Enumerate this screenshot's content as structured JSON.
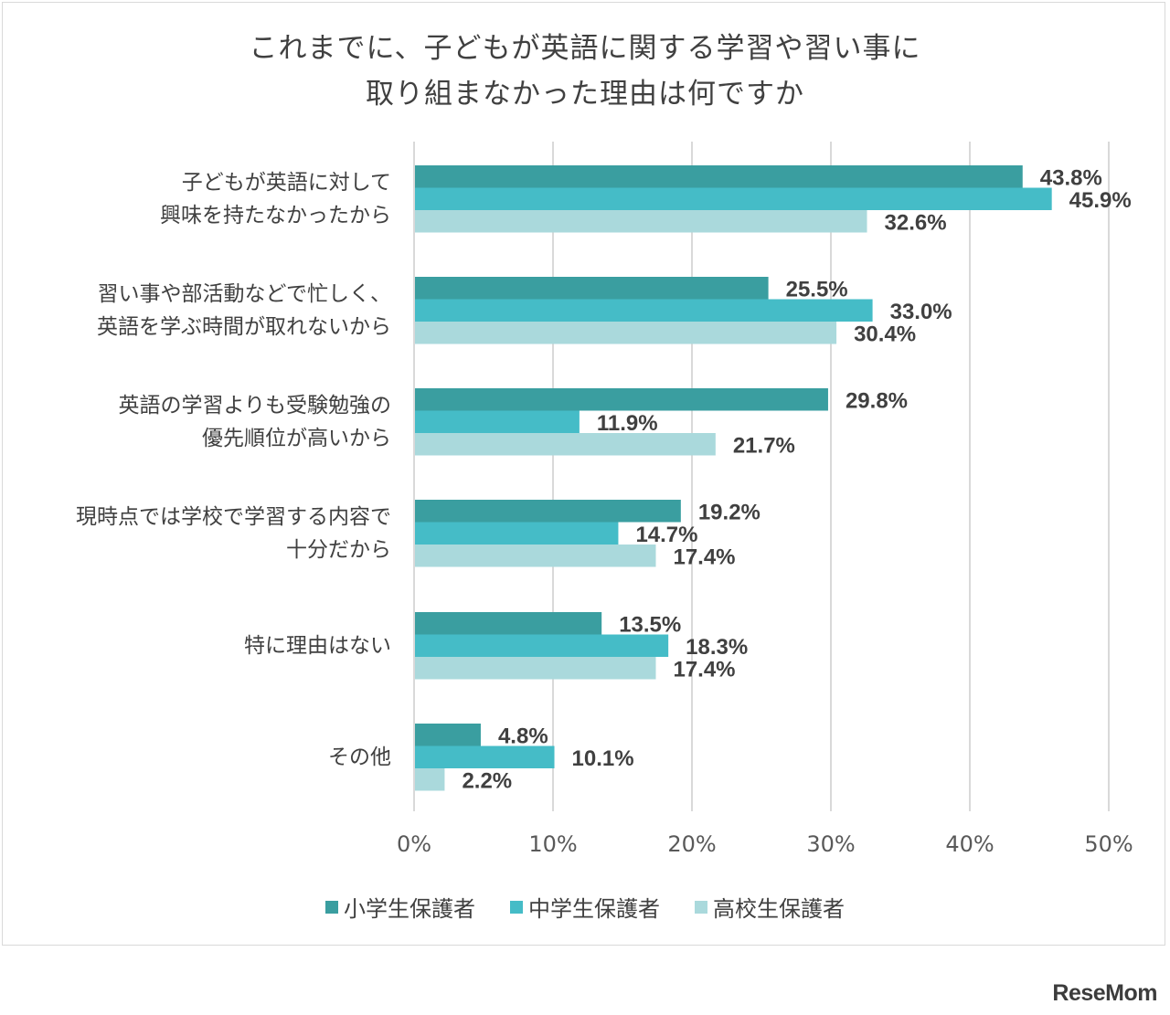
{
  "chart_data": {
    "type": "bar",
    "orientation": "horizontal",
    "title": "これまでに、子どもが英語に関する学習や習い事に\n取り組まなかった理由は何ですか",
    "categories": [
      "子どもが英語に対して\n興味を持たなかったから",
      "習い事や部活動などで忙しく、\n英語を学ぶ時間が取れないから",
      "英語の学習よりも受験勉強の\n優先順位が高いから",
      "現時点では学校で学習する内容で\n十分だから",
      "特に理由はない",
      "その他"
    ],
    "series": [
      {
        "name": "小学生保護者",
        "color": "#3a9ea0",
        "values": [
          43.8,
          25.5,
          29.8,
          19.2,
          13.5,
          4.8
        ]
      },
      {
        "name": "中学生保護者",
        "color": "#45bcc7",
        "values": [
          45.9,
          33.0,
          11.9,
          14.7,
          18.3,
          10.1
        ]
      },
      {
        "name": "高校生保護者",
        "color": "#aad9dc",
        "values": [
          32.6,
          30.4,
          21.7,
          17.4,
          17.4,
          2.2
        ]
      }
    ],
    "xlim": [
      0,
      50
    ],
    "xticks": [
      "0%",
      "10%",
      "20%",
      "30%",
      "40%",
      "50%"
    ],
    "grid": true,
    "legend": "bottom"
  },
  "brand": "ReseMom"
}
